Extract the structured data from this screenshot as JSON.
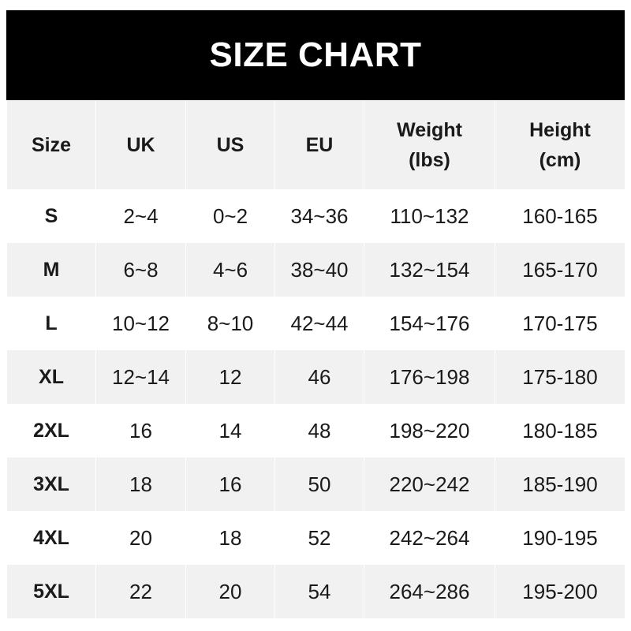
{
  "title": "SIZE CHART",
  "colors": {
    "header_bg": "#000000",
    "alt_row_bg": "#f1f1f1"
  },
  "headers": [
    {
      "line1": "Size",
      "line2": ""
    },
    {
      "line1": "UK",
      "line2": ""
    },
    {
      "line1": "US",
      "line2": ""
    },
    {
      "line1": "EU",
      "line2": ""
    },
    {
      "line1": "Weight",
      "line2": "(lbs)"
    },
    {
      "line1": "Height",
      "line2": "(cm)"
    }
  ],
  "rows": [
    [
      "S",
      "2~4",
      "0~2",
      "34~36",
      "110~132",
      "160-165"
    ],
    [
      "M",
      "6~8",
      "4~6",
      "38~40",
      "132~154",
      "165-170"
    ],
    [
      "L",
      "10~12",
      "8~10",
      "42~44",
      "154~176",
      "170-175"
    ],
    [
      "XL",
      "12~14",
      "12",
      "46",
      "176~198",
      "175-180"
    ],
    [
      "2XL",
      "16",
      "14",
      "48",
      "198~220",
      "180-185"
    ],
    [
      "3XL",
      "18",
      "16",
      "50",
      "220~242",
      "185-190"
    ],
    [
      "4XL",
      "20",
      "18",
      "52",
      "242~264",
      "190-195"
    ],
    [
      "5XL",
      "22",
      "20",
      "54",
      "264~286",
      "195-200"
    ]
  ]
}
